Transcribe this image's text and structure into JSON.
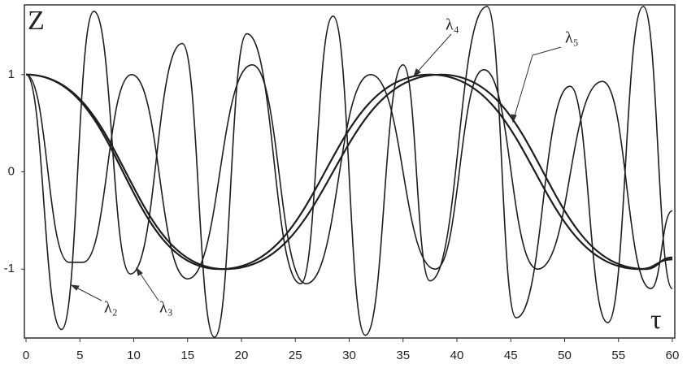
{
  "chart_data": {
    "type": "line",
    "x_label": "τ",
    "y_label": "Z",
    "xlim": [
      0,
      60
    ],
    "ylim": [
      -1.7,
      1.7
    ],
    "xticks": [
      0,
      5,
      10,
      15,
      20,
      25,
      30,
      35,
      40,
      45,
      50,
      55,
      60
    ],
    "yticks": [
      -1,
      0,
      1
    ],
    "grid": false,
    "series": [
      {
        "name": "λ₂",
        "color": "#1e1e1e",
        "x": [
          0,
          3.3,
          6.3,
          9.7,
          14.5,
          17.5,
          20.5,
          25.5,
          28.5,
          31.5,
          35,
          37.5,
          42.8,
          45.5,
          50.5,
          54,
          57.3,
          60
        ],
        "values": [
          1,
          -1.62,
          1.65,
          -1.05,
          1.32,
          -1.7,
          1.42,
          -1.15,
          1.6,
          -1.68,
          1.1,
          -1.12,
          1.7,
          -1.5,
          0.88,
          -1.55,
          1.7,
          -1.2
        ]
      },
      {
        "name": "λ₃",
        "color": "#1e1e1e",
        "x": [
          0,
          4,
          5.3,
          9.8,
          15,
          21,
          26,
          32,
          38,
          42.5,
          47.5,
          53.5,
          58,
          60
        ],
        "values": [
          1,
          -0.93,
          -0.93,
          1.0,
          -1.1,
          1.1,
          -1.15,
          1.0,
          -1.0,
          1.05,
          -1.0,
          0.93,
          -1.2,
          -0.4
        ]
      },
      {
        "name": "λ₄",
        "color": "#1e1e1e",
        "x": [
          0,
          18,
          37.5,
          57,
          60
        ],
        "values": [
          1,
          -1,
          1,
          -1,
          -0.9
        ]
      },
      {
        "name": "λ₅",
        "color": "#1e1e1e",
        "x": [
          0,
          18.5,
          38.5,
          57.5,
          60
        ],
        "values": [
          1,
          -1,
          1,
          -1,
          -0.88
        ]
      }
    ]
  }
}
